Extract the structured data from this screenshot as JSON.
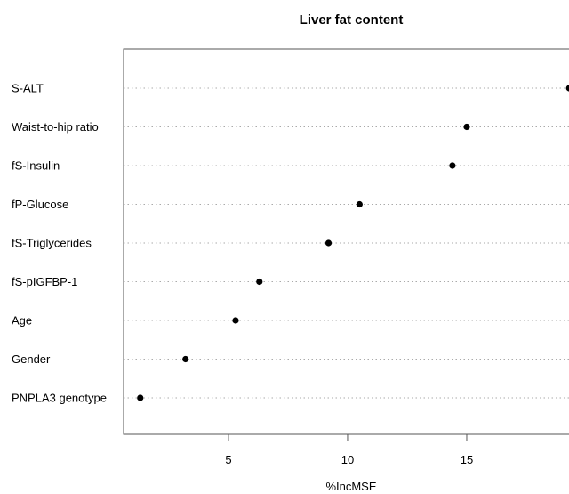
{
  "chart_data": {
    "type": "scatter",
    "title": "Liver fat content",
    "xlabel": "%IncMSE",
    "ylabel": "",
    "categories": [
      "S-ALT",
      "Waist-to-hip ratio",
      "fS-Insulin",
      "fP-Glucose",
      "fS-Triglycerides",
      "fS-pIGFBP-1",
      "Age",
      "Gender",
      "PNPLA3 genotype"
    ],
    "values": [
      19.3,
      15.0,
      14.4,
      10.5,
      9.2,
      6.3,
      5.3,
      3.2,
      1.3
    ],
    "xlim": [
      0.6,
      20.0
    ],
    "xticks": [
      5,
      10,
      15
    ],
    "grid": true,
    "legend": "none",
    "point_color": "#000000"
  }
}
